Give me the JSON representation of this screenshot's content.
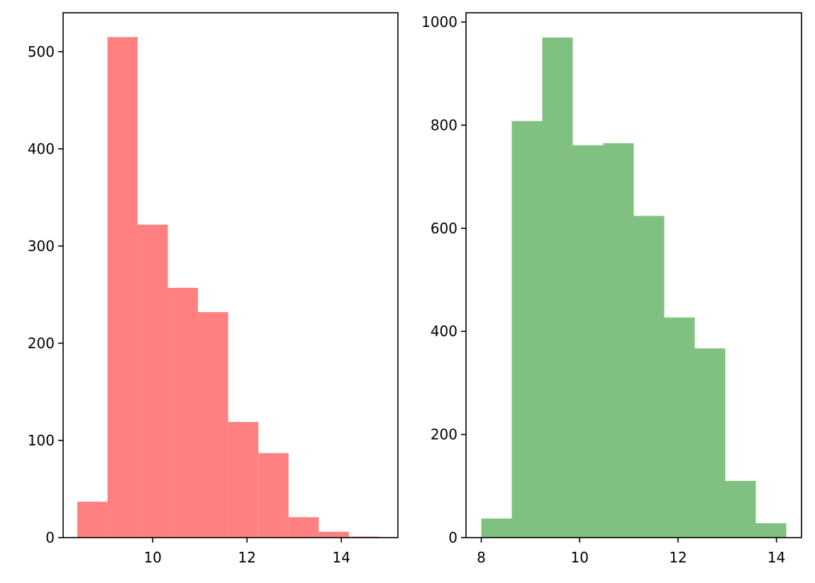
{
  "chart_data": [
    {
      "type": "bar",
      "subtype": "histogram",
      "color": "#ff8080",
      "bins": [
        {
          "x0": 8.4,
          "x1": 9.04,
          "count": 37
        },
        {
          "x0": 9.04,
          "x1": 9.68,
          "count": 515
        },
        {
          "x0": 9.68,
          "x1": 10.32,
          "count": 322
        },
        {
          "x0": 10.32,
          "x1": 10.96,
          "count": 257
        },
        {
          "x0": 10.96,
          "x1": 11.6,
          "count": 232
        },
        {
          "x0": 11.6,
          "x1": 12.24,
          "count": 119
        },
        {
          "x0": 12.24,
          "x1": 12.88,
          "count": 87
        },
        {
          "x0": 12.88,
          "x1": 13.52,
          "count": 21
        },
        {
          "x0": 13.52,
          "x1": 14.16,
          "count": 6
        },
        {
          "x0": 14.16,
          "x1": 14.8,
          "count": 1
        }
      ],
      "xlim": [
        8.1,
        15.2
      ],
      "ylim": [
        0,
        540
      ],
      "xticks": [
        10,
        12,
        14
      ],
      "xtick_labels": [
        "10",
        "12",
        "14"
      ],
      "yticks": [
        0,
        100,
        200,
        300,
        400,
        500
      ],
      "ytick_labels": [
        "0",
        "100",
        "200",
        "300",
        "400",
        "500"
      ],
      "xlabel": "",
      "ylabel": "",
      "title": ""
    },
    {
      "type": "bar",
      "subtype": "histogram",
      "color": "#80c080",
      "bins": [
        {
          "x0": 8.0,
          "x1": 8.62,
          "count": 37
        },
        {
          "x0": 8.62,
          "x1": 9.24,
          "count": 808
        },
        {
          "x0": 9.24,
          "x1": 9.86,
          "count": 970
        },
        {
          "x0": 9.86,
          "x1": 10.48,
          "count": 761
        },
        {
          "x0": 10.48,
          "x1": 11.1,
          "count": 765
        },
        {
          "x0": 11.1,
          "x1": 11.72,
          "count": 624
        },
        {
          "x0": 11.72,
          "x1": 12.34,
          "count": 427
        },
        {
          "x0": 12.34,
          "x1": 12.96,
          "count": 367
        },
        {
          "x0": 12.96,
          "x1": 13.58,
          "count": 110
        },
        {
          "x0": 13.58,
          "x1": 14.2,
          "count": 28
        }
      ],
      "xlim": [
        7.69,
        14.51
      ],
      "ylim": [
        0,
        1018
      ],
      "xticks": [
        8,
        10,
        12,
        14
      ],
      "xtick_labels": [
        "8",
        "10",
        "12",
        "14"
      ],
      "yticks": [
        0,
        200,
        400,
        600,
        800,
        1000
      ],
      "ytick_labels": [
        "0",
        "200",
        "400",
        "600",
        "800",
        "1000"
      ],
      "xlabel": "",
      "ylabel": "",
      "title": ""
    }
  ]
}
